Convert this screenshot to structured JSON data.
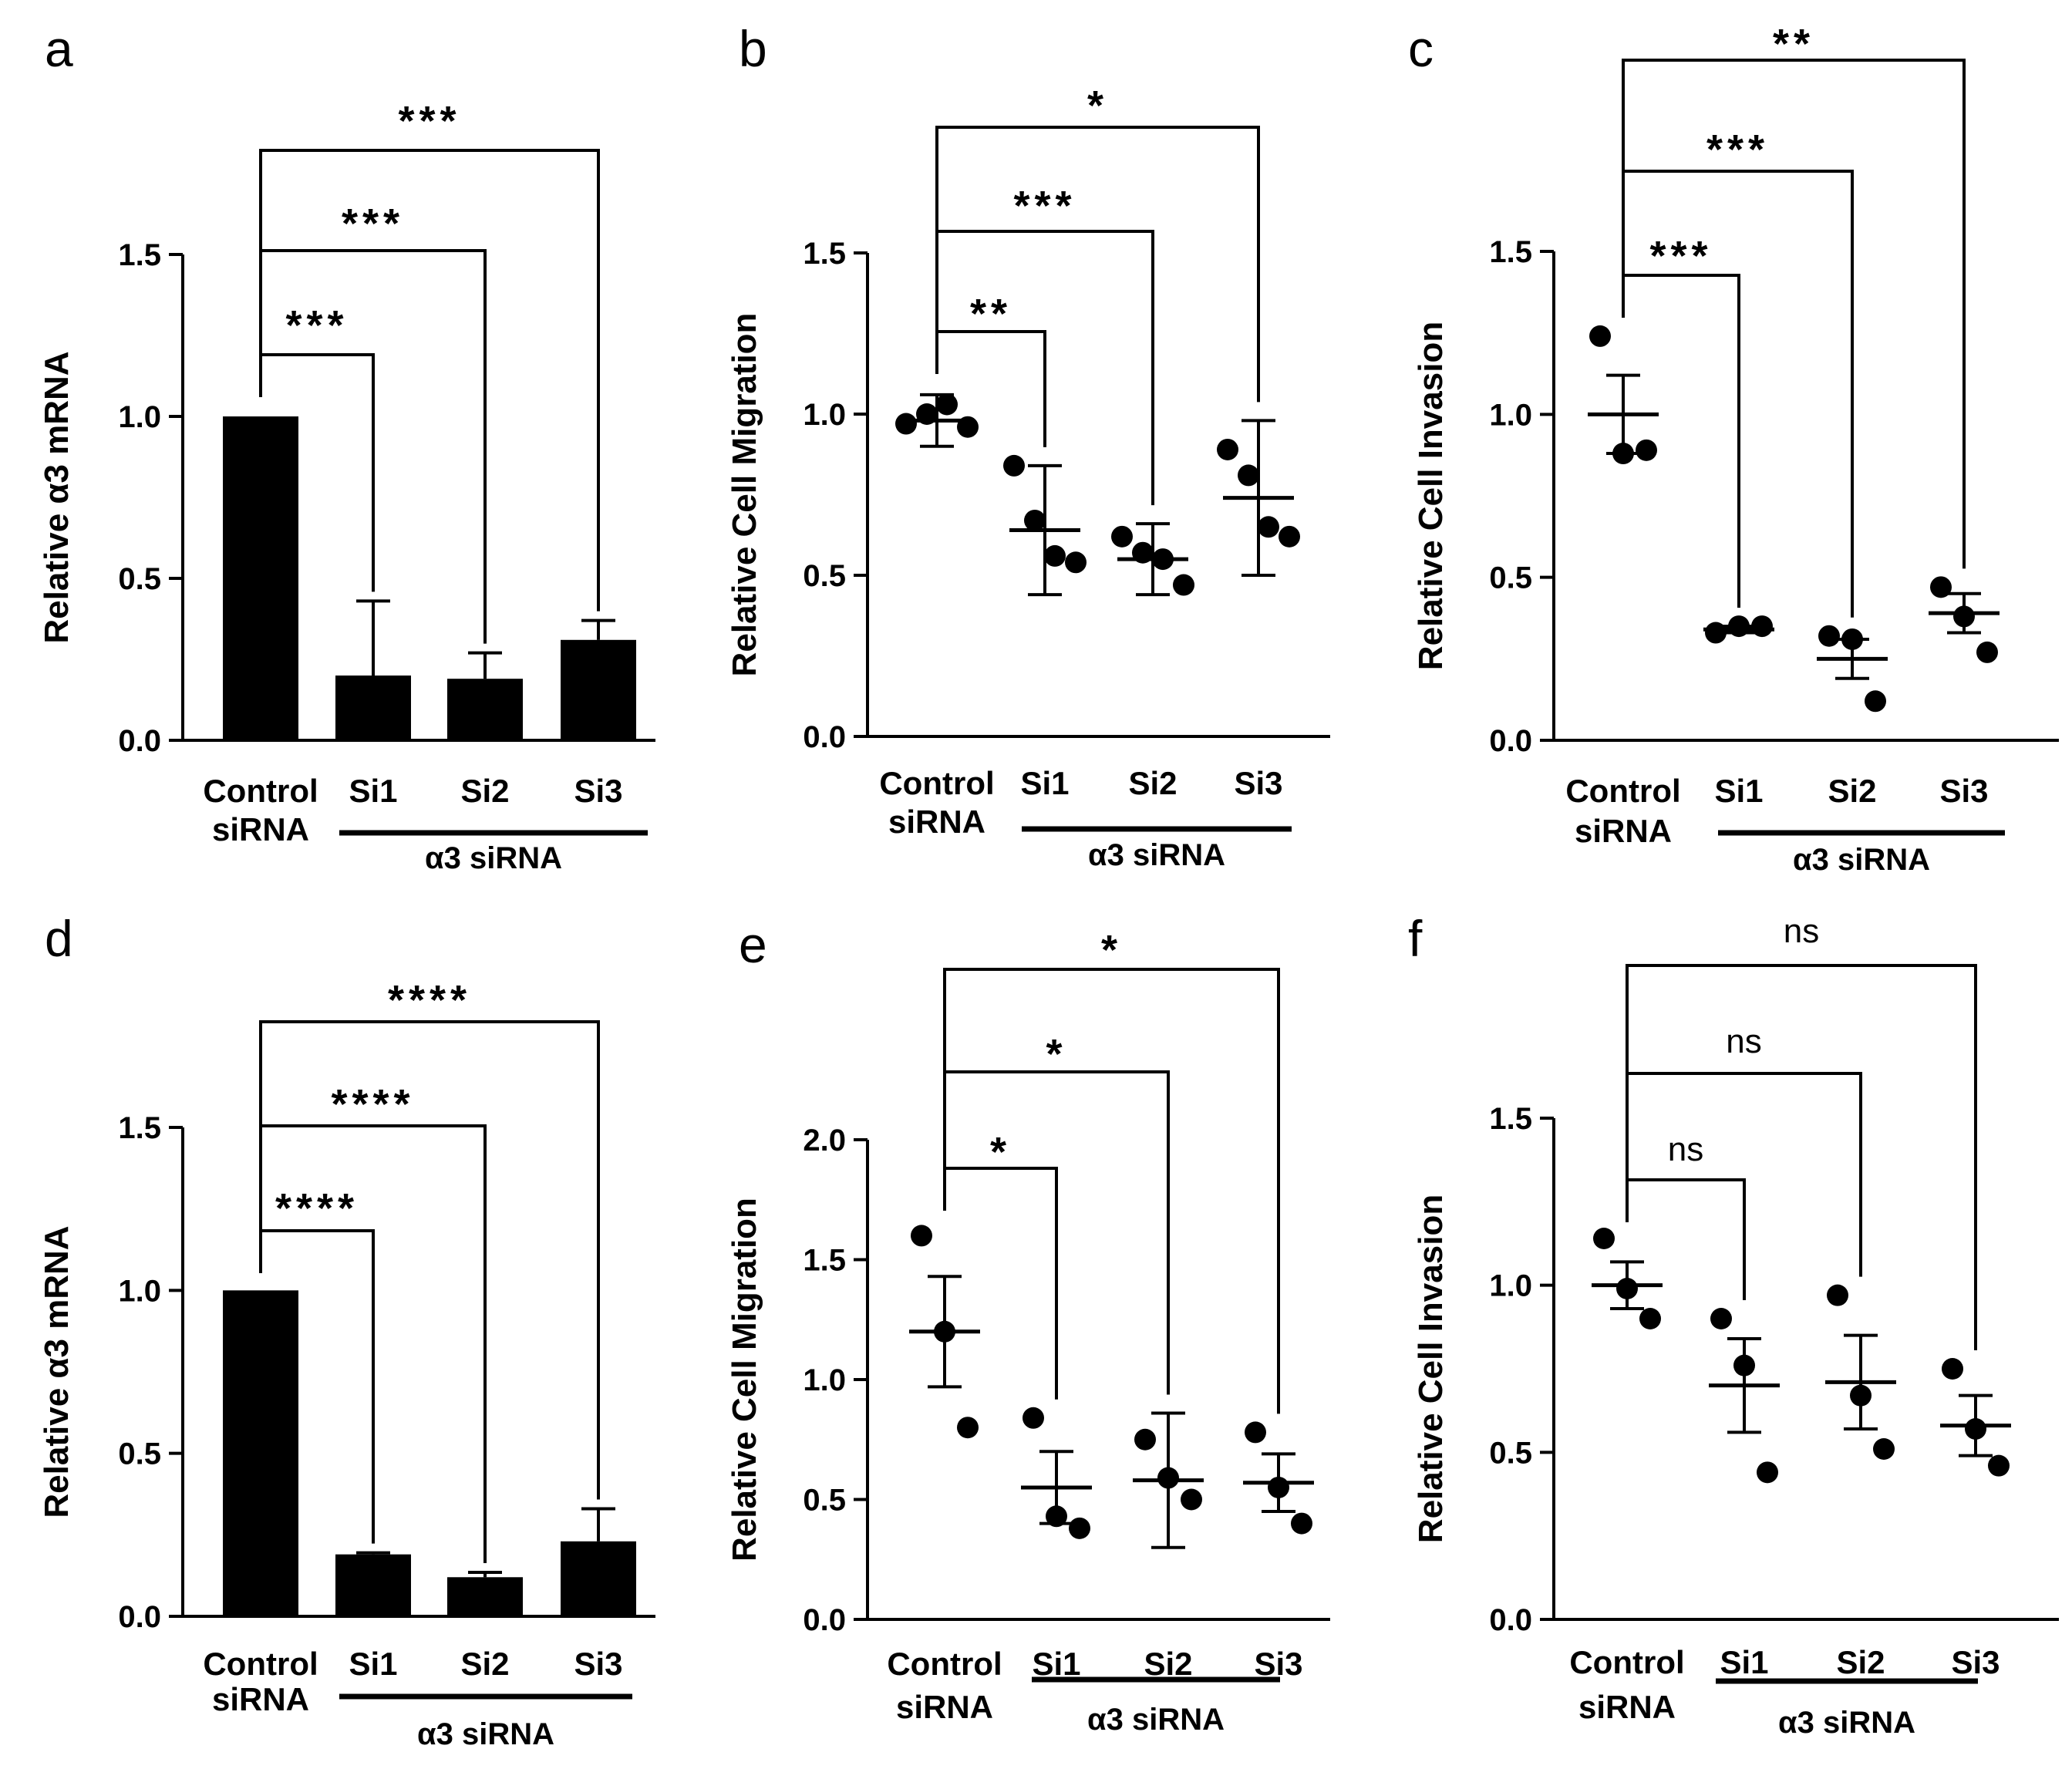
{
  "chart_data": [
    {
      "panel": "a",
      "type": "bar",
      "ylabel": "Relative α3 mRNA",
      "ylim": [
        0,
        1.5
      ],
      "yticks": [
        "0.0",
        "0.5",
        "1.0",
        "1.5"
      ],
      "categories": [
        "Control",
        "Si1",
        "Si2",
        "Si3"
      ],
      "category_sublabels": [
        "siRNA",
        "",
        "",
        ""
      ],
      "group_label": "α3 siRNA",
      "values": [
        1.0,
        0.2,
        0.19,
        0.31
      ],
      "errors": [
        0,
        0.23,
        0.08,
        0.06
      ],
      "comparisons": [
        {
          "from": "Control",
          "to": "Si1",
          "label": "***"
        },
        {
          "from": "Control",
          "to": "Si2",
          "label": "***"
        },
        {
          "from": "Control",
          "to": "Si3",
          "label": "***"
        }
      ]
    },
    {
      "panel": "b",
      "type": "scatter",
      "ylabel": "Relative Cell Migration",
      "ylim": [
        0,
        1.5
      ],
      "yticks": [
        "0.0",
        "0.5",
        "1.0",
        "1.5"
      ],
      "categories": [
        "Control",
        "Si1",
        "Si2",
        "Si3"
      ],
      "category_sublabels": [
        "siRNA",
        "",
        "",
        ""
      ],
      "group_label": "α3 siRNA",
      "points": [
        [
          0.97,
          1.0,
          1.03,
          0.96
        ],
        [
          0.84,
          0.67,
          0.56,
          0.54
        ],
        [
          0.62,
          0.57,
          0.55,
          0.47
        ],
        [
          0.89,
          0.81,
          0.65,
          0.62
        ]
      ],
      "means": [
        0.98,
        0.64,
        0.55,
        0.74
      ],
      "errors": [
        0.08,
        0.2,
        0.11,
        0.24
      ],
      "comparisons": [
        {
          "from": "Control",
          "to": "Si1",
          "label": "**"
        },
        {
          "from": "Control",
          "to": "Si2",
          "label": "***"
        },
        {
          "from": "Control",
          "to": "Si3",
          "label": "*"
        }
      ]
    },
    {
      "panel": "c",
      "type": "scatter",
      "ylabel": "Relative Cell Invasion",
      "ylim": [
        0,
        1.5
      ],
      "yticks": [
        "0.0",
        "0.5",
        "1.0",
        "1.5"
      ],
      "categories": [
        "Control",
        "Si1",
        "Si2",
        "Si3"
      ],
      "category_sublabels": [
        "siRNA",
        "",
        "",
        ""
      ],
      "group_label": "α3 siRNA",
      "points": [
        [
          1.24,
          0.88,
          0.89
        ],
        [
          0.33,
          0.35,
          0.35
        ],
        [
          0.32,
          0.31,
          0.12
        ],
        [
          0.47,
          0.38,
          0.27
        ]
      ],
      "means": [
        1.0,
        0.34,
        0.25,
        0.39
      ],
      "errors": [
        0.12,
        0.01,
        0.06,
        0.06
      ],
      "comparisons": [
        {
          "from": "Control",
          "to": "Si1",
          "label": "***"
        },
        {
          "from": "Control",
          "to": "Si2",
          "label": "***"
        },
        {
          "from": "Control",
          "to": "Si3",
          "label": "**"
        }
      ]
    },
    {
      "panel": "d",
      "type": "bar",
      "ylabel": "Relative α3 mRNA",
      "ylim": [
        0,
        1.5
      ],
      "yticks": [
        "0.0",
        "0.5",
        "1.0",
        "1.5"
      ],
      "categories": [
        "Control",
        "Si1",
        "Si2",
        "Si3"
      ],
      "category_sublabels": [
        "siRNA",
        "",
        "",
        ""
      ],
      "group_label": "α3 siRNA",
      "values": [
        1.0,
        0.19,
        0.12,
        0.23
      ],
      "errors": [
        0,
        0.005,
        0.015,
        0.1
      ],
      "comparisons": [
        {
          "from": "Control",
          "to": "Si1",
          "label": "****"
        },
        {
          "from": "Control",
          "to": "Si2",
          "label": "****"
        },
        {
          "from": "Control",
          "to": "Si3",
          "label": "****"
        }
      ]
    },
    {
      "panel": "e",
      "type": "scatter",
      "ylabel": "Relative Cell Migration",
      "ylim": [
        0,
        2.0
      ],
      "yticks": [
        "0.0",
        "0.5",
        "1.0",
        "1.5",
        "2.0"
      ],
      "categories": [
        "Control",
        "Si1",
        "Si2",
        "Si3"
      ],
      "category_sublabels": [
        "siRNA",
        "",
        "",
        ""
      ],
      "group_label": "α3 siRNA",
      "points": [
        [
          1.6,
          1.2,
          0.8
        ],
        [
          0.84,
          0.43,
          0.38
        ],
        [
          0.75,
          0.59,
          0.5
        ],
        [
          0.78,
          0.55,
          0.4
        ]
      ],
      "means": [
        1.2,
        0.55,
        0.58,
        0.57
      ],
      "errors": [
        0.23,
        0.15,
        0.28,
        0.12
      ],
      "comparisons": [
        {
          "from": "Control",
          "to": "Si1",
          "label": "*"
        },
        {
          "from": "Control",
          "to": "Si2",
          "label": "*"
        },
        {
          "from": "Control",
          "to": "Si3",
          "label": "*"
        }
      ]
    },
    {
      "panel": "f",
      "type": "scatter",
      "ylabel": "Relative Cell Invasion",
      "ylim": [
        0,
        1.5
      ],
      "yticks": [
        "0.0",
        "0.5",
        "1.0",
        "1.5"
      ],
      "categories": [
        "Control",
        "Si1",
        "Si2",
        "Si3"
      ],
      "category_sublabels": [
        "siRNA",
        "",
        "",
        ""
      ],
      "group_label": "α3 siRNA",
      "points": [
        [
          1.14,
          0.99,
          0.9
        ],
        [
          0.9,
          0.76,
          0.44
        ],
        [
          0.97,
          0.67,
          0.51
        ],
        [
          0.75,
          0.57,
          0.46
        ]
      ],
      "means": [
        1.0,
        0.7,
        0.71,
        0.58
      ],
      "errors": [
        0.07,
        0.14,
        0.14,
        0.09
      ],
      "comparisons": [
        {
          "from": "Control",
          "to": "Si1",
          "label": "ns"
        },
        {
          "from": "Control",
          "to": "Si2",
          "label": "ns"
        },
        {
          "from": "Control",
          "to": "Si3",
          "label": "ns"
        }
      ]
    }
  ]
}
